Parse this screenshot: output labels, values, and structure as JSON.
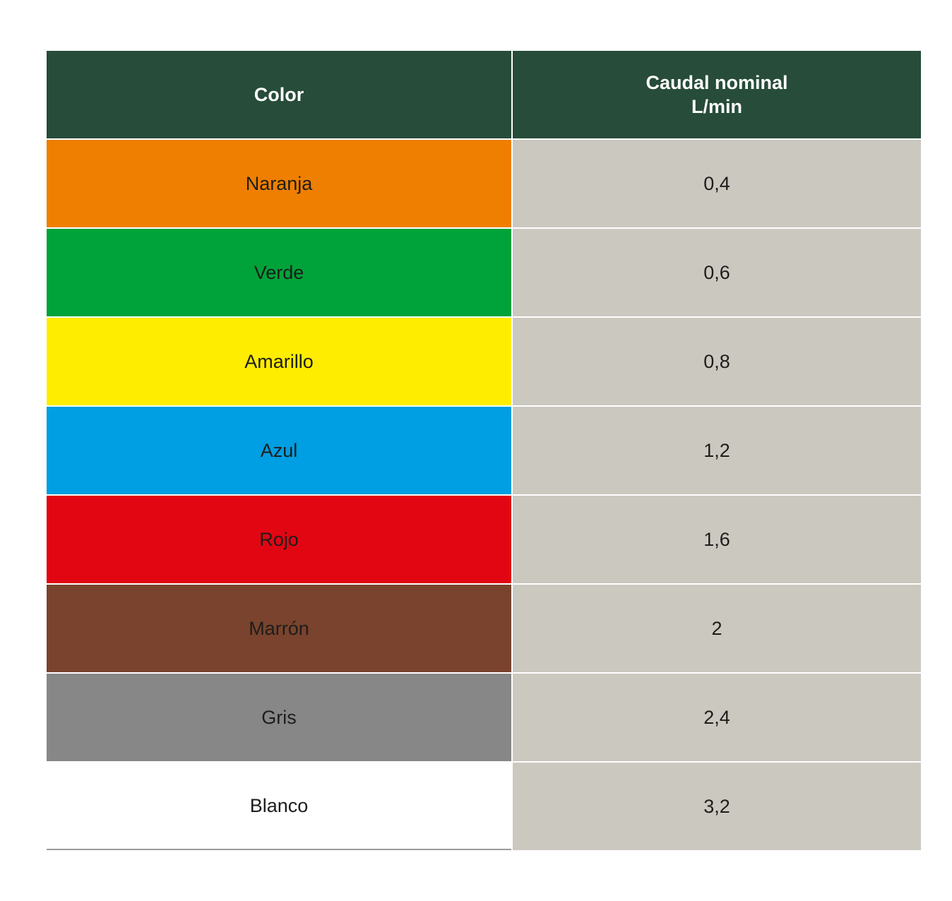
{
  "table": {
    "headers": {
      "color": "Color",
      "flow_line1": "Caudal nominal",
      "flow_line2": "L/min"
    },
    "rows": [
      {
        "color_name": "Naranja",
        "flow": "0,4",
        "swatch": "#ef7f00"
      },
      {
        "color_name": "Verde",
        "flow": "0,6",
        "swatch": "#00a339"
      },
      {
        "color_name": "Amarillo",
        "flow": "0,8",
        "swatch": "#ffed00"
      },
      {
        "color_name": "Azul",
        "flow": "1,2",
        "swatch": "#009ee2"
      },
      {
        "color_name": "Rojo",
        "flow": "1,6",
        "swatch": "#e20613"
      },
      {
        "color_name": "Marrón",
        "flow": "2",
        "swatch": "#7a432d"
      },
      {
        "color_name": "Gris",
        "flow": "2,4",
        "swatch": "#878787"
      },
      {
        "color_name": "Blanco",
        "flow": "3,2",
        "swatch": "#ffffff"
      }
    ]
  },
  "colors": {
    "header_bg": "#274c3a",
    "value_bg": "#cbc8c0",
    "header_text": "#ffffff"
  }
}
